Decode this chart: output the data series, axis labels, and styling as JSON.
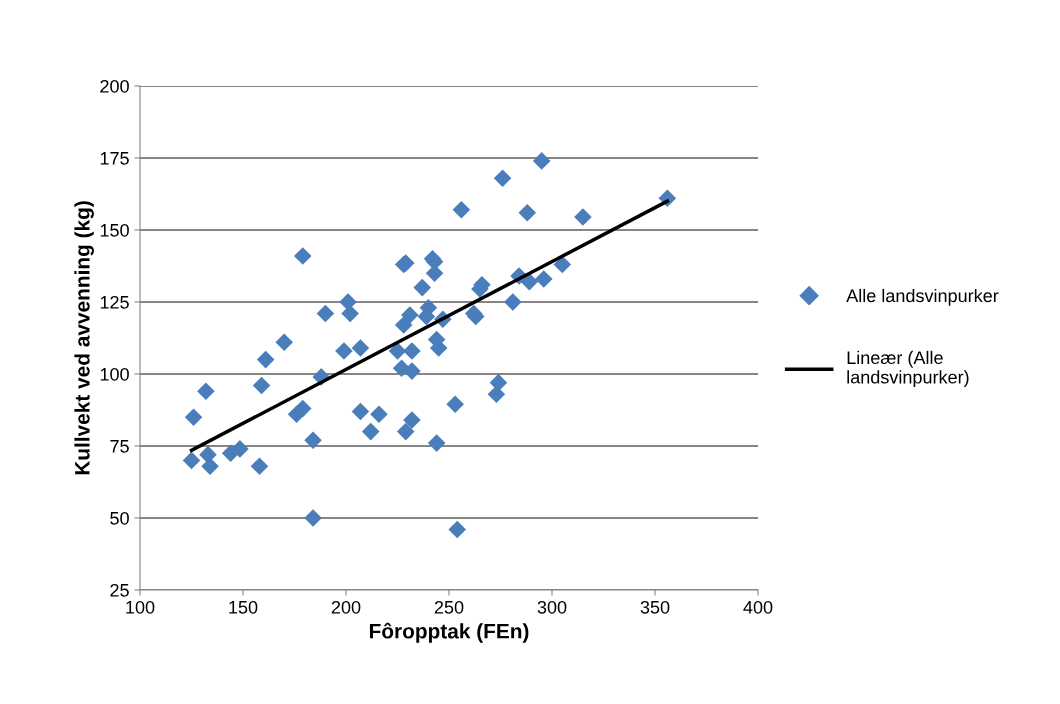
{
  "chart_data": {
    "type": "scatter",
    "xlabel": "Fôropptak (FEn)",
    "ylabel": "Kullvekt ved avvenning (kg)",
    "xlim": [
      100,
      400
    ],
    "xticks": [
      100,
      150,
      200,
      250,
      300,
      350,
      400
    ],
    "ylim": [
      25,
      200
    ],
    "yticks": [
      25,
      50,
      75,
      100,
      125,
      150,
      175,
      200
    ],
    "grid": "y",
    "legend": "right",
    "series": [
      {
        "name": "Alle landsvinpurker",
        "marker": "diamond",
        "color": "#4a7ebb",
        "x": [
          125,
          126,
          132,
          133,
          134,
          144,
          148.5,
          158,
          159,
          161,
          170,
          176,
          179,
          179,
          184,
          184,
          188,
          190,
          199,
          201,
          202,
          207,
          207,
          212,
          216,
          225,
          227,
          228,
          228,
          229,
          229,
          231,
          232,
          232,
          232,
          237,
          239,
          240,
          242,
          243,
          243,
          244,
          244,
          245,
          247,
          253,
          254,
          256,
          262,
          263,
          265,
          266,
          273,
          274,
          276,
          281,
          284,
          288,
          289,
          295,
          296,
          305,
          315,
          356
        ],
        "values": [
          70,
          85,
          94,
          72,
          68,
          72.5,
          74,
          68,
          96,
          105,
          111,
          86,
          88,
          141,
          77,
          50,
          99,
          121,
          108,
          125,
          121,
          109,
          87,
          80,
          86,
          108,
          102,
          117,
          138,
          138.5,
          80,
          120.5,
          101,
          108,
          84,
          130,
          120,
          123,
          140,
          139,
          135,
          76,
          112,
          109,
          119,
          89.5,
          46,
          157,
          121,
          120,
          129.5,
          131,
          93,
          97,
          168,
          125,
          134,
          156,
          132,
          174,
          133,
          138,
          154.5,
          161
        ]
      },
      {
        "name": "Lineær (Alle landsvinpurker)",
        "type": "line",
        "marker": "none",
        "line_style": "solid",
        "color": "#000000",
        "x": [
          125,
          356
        ],
        "values": [
          73.5,
          160
        ]
      }
    ]
  }
}
